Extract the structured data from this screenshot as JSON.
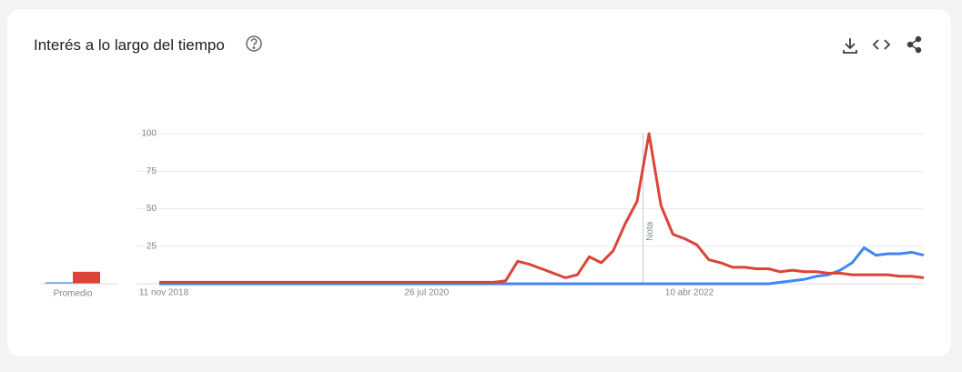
{
  "header": {
    "title": "Interés a lo largo del tiempo"
  },
  "chart_data": {
    "type": "line",
    "categories": [
      "11 nov 2018",
      null,
      null,
      null,
      null,
      null,
      null,
      null,
      null,
      null,
      null,
      null,
      null,
      null,
      null,
      null,
      null,
      null,
      null,
      null,
      null,
      null,
      "26 jul 2020",
      null,
      null,
      null,
      null,
      null,
      null,
      null,
      null,
      null,
      null,
      null,
      null,
      null,
      null,
      null,
      null,
      null,
      null,
      null,
      null,
      null,
      "10 abr 2022",
      null,
      null,
      null,
      null,
      null,
      null,
      null,
      null,
      null,
      null,
      null,
      null,
      null,
      null,
      null,
      null,
      null,
      null,
      null,
      null
    ],
    "series": [
      {
        "color": "#4285f4",
        "average": 1,
        "values": [
          0,
          0,
          0,
          0,
          0,
          0,
          0,
          0,
          0,
          0,
          0,
          0,
          0,
          0,
          0,
          0,
          0,
          0,
          0,
          0,
          0,
          0,
          0,
          0,
          0,
          0,
          0,
          0,
          0,
          0,
          0,
          0,
          0,
          0,
          0,
          0,
          0,
          0,
          0,
          0,
          0,
          0,
          0,
          0,
          0,
          0,
          0,
          0,
          0,
          0,
          0,
          0,
          1,
          2,
          3,
          5,
          6,
          9,
          14,
          24,
          19,
          20,
          20,
          21,
          19
        ]
      },
      {
        "color": "#db4437",
        "average": 8,
        "values": [
          1,
          1,
          1,
          1,
          1,
          1,
          1,
          1,
          1,
          1,
          1,
          1,
          1,
          1,
          1,
          1,
          1,
          1,
          1,
          1,
          1,
          1,
          1,
          1,
          1,
          1,
          1,
          1,
          1,
          2,
          15,
          13,
          10,
          7,
          4,
          6,
          18,
          14,
          22,
          40,
          55,
          100,
          52,
          33,
          30,
          26,
          16,
          14,
          11,
          11,
          10,
          10,
          8,
          9,
          8,
          8,
          7,
          7,
          6,
          6,
          6,
          6,
          5,
          5,
          4
        ]
      }
    ],
    "average_label": "Promedio",
    "annotation": "Nota",
    "ylim": [
      0,
      100
    ],
    "yticks": [
      25,
      50,
      75,
      100
    ],
    "grid": true
  }
}
